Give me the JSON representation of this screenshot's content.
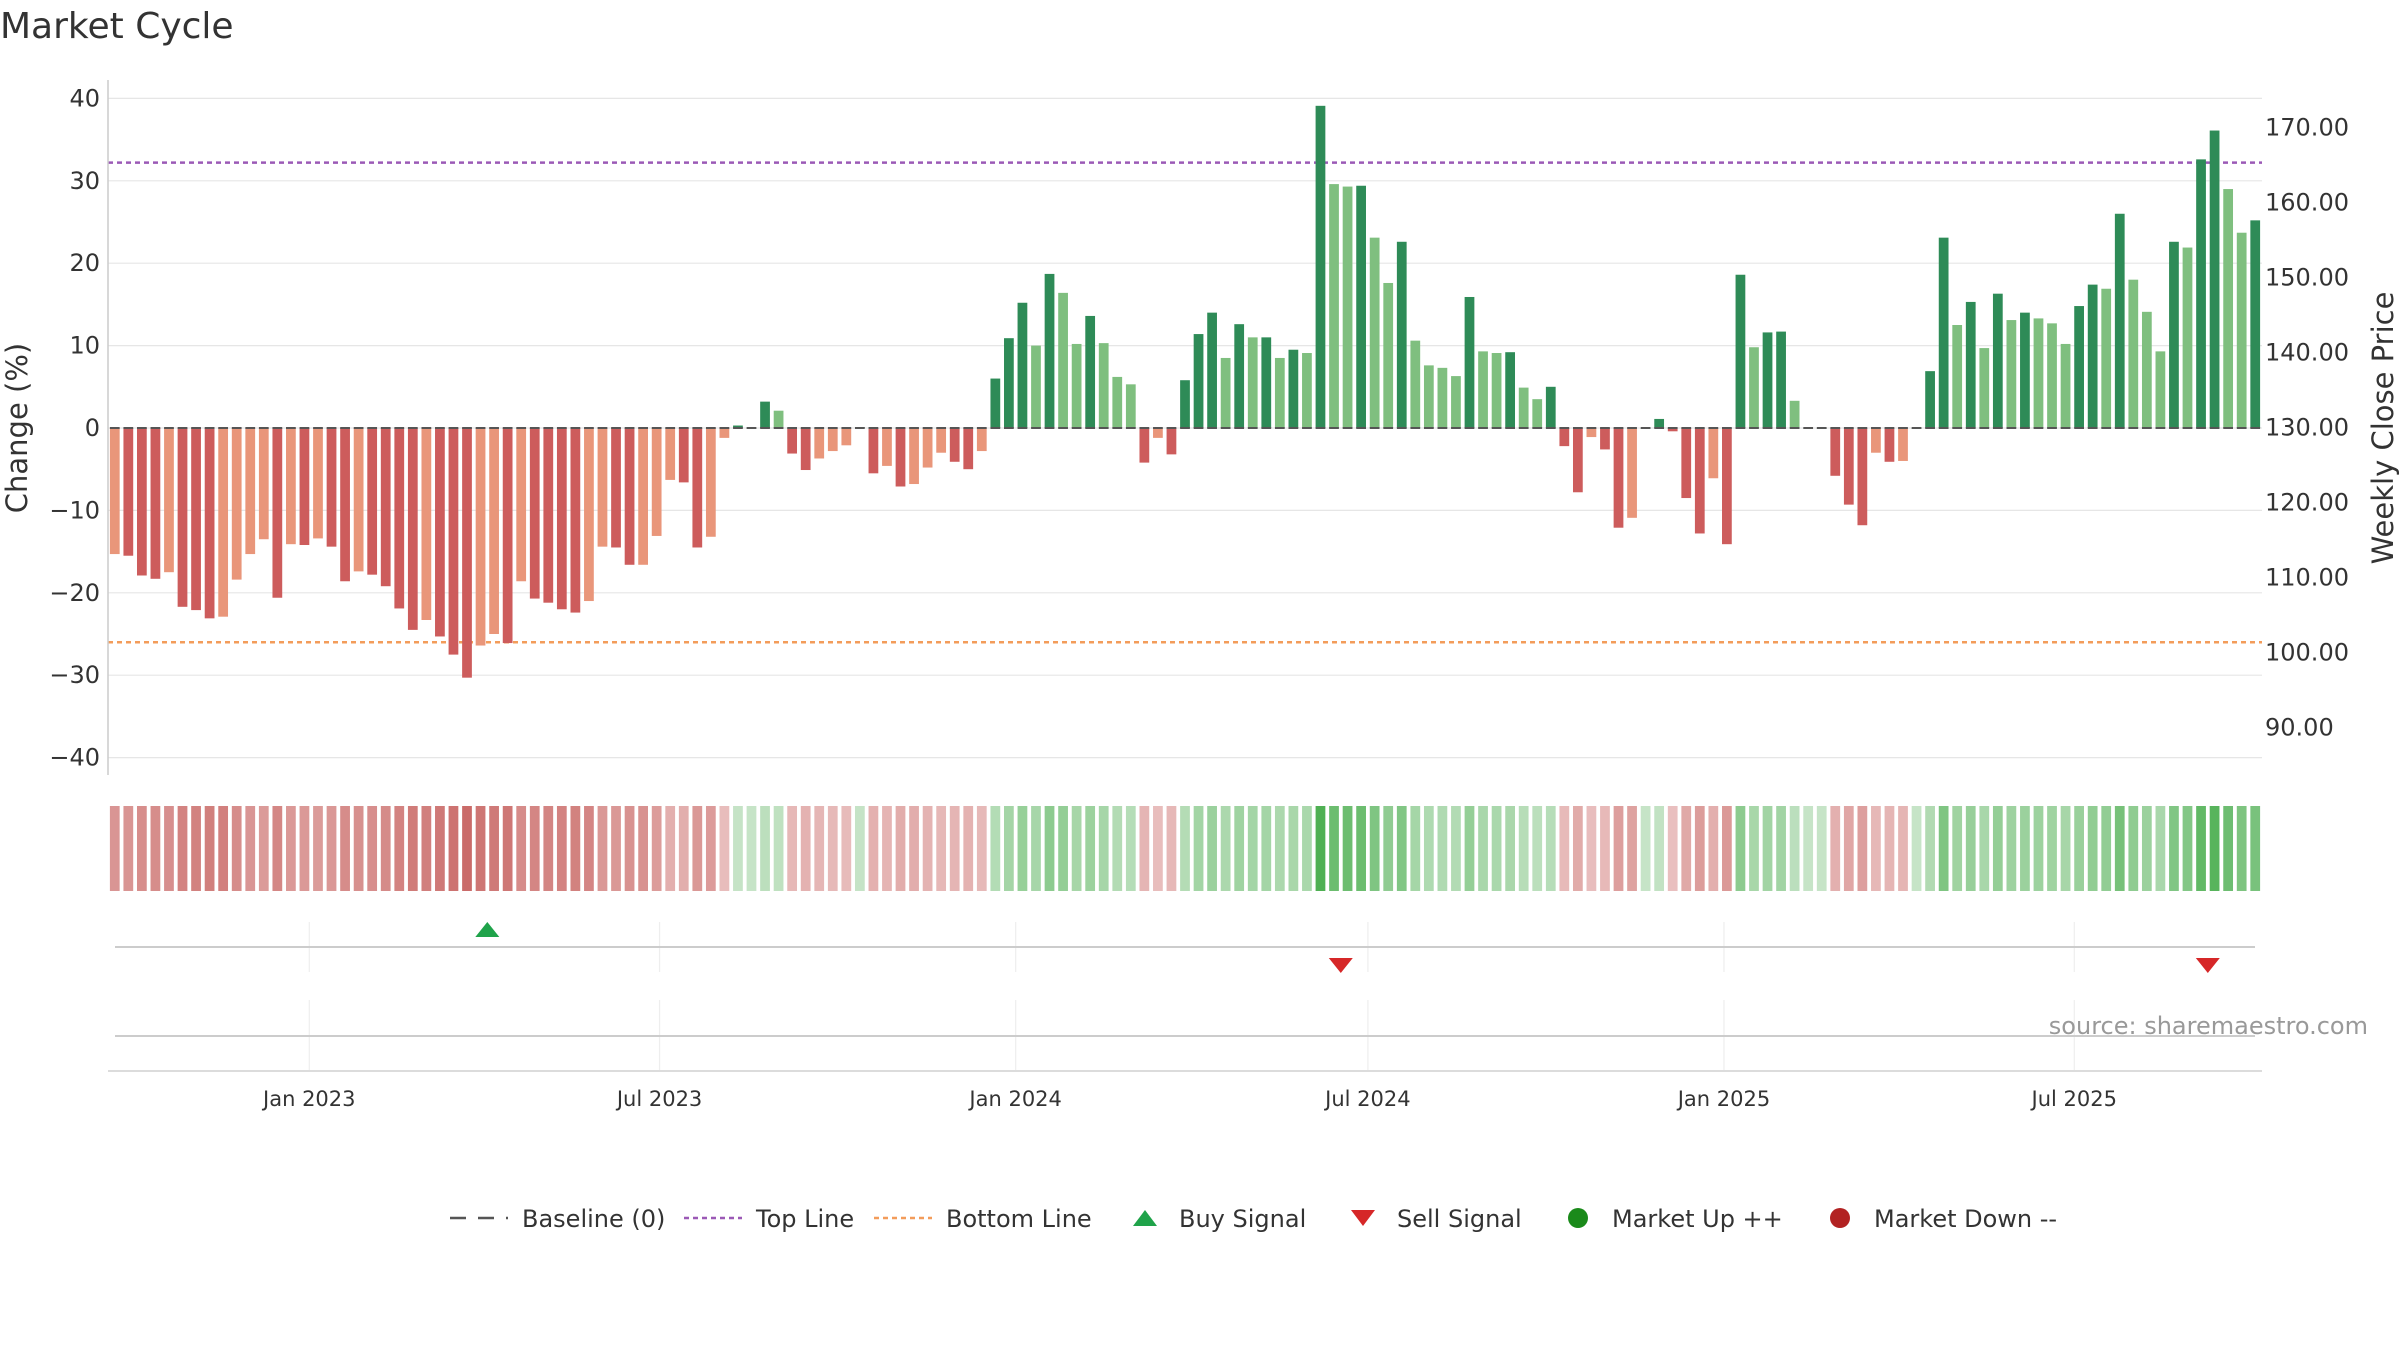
{
  "chart_data": {
    "type": "bar",
    "title": "Market Cycle",
    "ylabel": "Change (%)",
    "y2label": "Weekly Close Price",
    "ylim": [
      -42,
      42
    ],
    "y2lim": [
      83.7,
      176.3
    ],
    "yticks": [
      "40",
      "30",
      "20",
      "10",
      "0",
      "−10",
      "−20",
      "−30",
      "−40"
    ],
    "y2ticks": [
      "170.00",
      "160.00",
      "150.00",
      "140.00",
      "130.00",
      "120.00",
      "110.00",
      "100.00",
      "90.00"
    ],
    "x_range": [
      "2022-09-19",
      "2025-10-06"
    ],
    "xticks": [
      {
        "date": "2023-01-01",
        "label": "Jan 2023"
      },
      {
        "date": "2023-07-01",
        "label": "Jul 2023"
      },
      {
        "date": "2024-01-01",
        "label": "Jan 2024"
      },
      {
        "date": "2024-07-01",
        "label": "Jul 2024"
      },
      {
        "date": "2025-01-01",
        "label": "Jan 2025"
      },
      {
        "date": "2025-07-01",
        "label": "Jul 2025"
      }
    ],
    "start_week": "2022-09-19",
    "top_line": 32.2,
    "bottom_line": -26.0,
    "grid": true,
    "legend_position": "bottom",
    "values": [
      -15.3,
      -15.5,
      -17.9,
      -18.3,
      -17.5,
      -21.7,
      -22.1,
      -23.1,
      -22.9,
      -18.4,
      -15.3,
      -13.5,
      -20.6,
      -14.1,
      -14.2,
      -13.4,
      -14.4,
      -18.6,
      -17.4,
      -17.8,
      -19.2,
      -21.9,
      -24.5,
      -23.3,
      -25.3,
      -27.5,
      -30.3,
      -26.4,
      -25.0,
      -26.1,
      -18.6,
      -20.7,
      -21.2,
      -22.0,
      -22.4,
      -21.0,
      -14.4,
      -14.5,
      -16.6,
      -16.6,
      -13.1,
      -6.3,
      -6.6,
      -14.5,
      -13.2,
      -1.2,
      0.3,
      0.0,
      3.2,
      2.1,
      -3.1,
      -5.1,
      -3.7,
      -2.8,
      -2.1,
      0.1,
      -5.5,
      -4.6,
      -7.1,
      -6.8,
      -4.8,
      -3.0,
      -4.1,
      -5.0,
      -2.8,
      6.0,
      10.9,
      15.2,
      10.0,
      18.7,
      16.4,
      10.2,
      13.6,
      10.3,
      6.2,
      5.3,
      -4.2,
      -1.2,
      -3.2,
      5.8,
      11.4,
      14.0,
      8.5,
      12.6,
      11.0,
      11.0,
      8.5,
      9.5,
      9.1,
      39.1,
      29.6,
      29.3,
      29.4,
      23.1,
      17.6,
      22.6,
      10.6,
      7.6,
      7.3,
      6.3,
      15.9,
      9.3,
      9.1,
      9.2,
      4.9,
      3.5,
      5.0,
      -2.2,
      -7.8,
      -1.1,
      -2.6,
      -12.1,
      -10.9,
      0.0,
      1.1,
      -0.4,
      -8.5,
      -12.8,
      -6.1,
      -14.1,
      18.6,
      9.8,
      11.6,
      11.7,
      3.3,
      0.0,
      0.0,
      -5.8,
      -9.3,
      -11.8,
      -3.0,
      -4.1,
      -4.0,
      0.0,
      6.9,
      23.1,
      12.5,
      15.3,
      9.7,
      16.3,
      13.1,
      14.0,
      13.3,
      12.7,
      10.2,
      14.8,
      17.4,
      16.9,
      26.0,
      18.0,
      14.1,
      9.3,
      22.6,
      21.9,
      32.6,
      36.1,
      29.0,
      23.7,
      25.2
    ],
    "buy_signals": [
      "2023-04-03"
    ],
    "sell_signals": [
      "2024-06-17",
      "2025-09-08"
    ],
    "colors": {
      "up_strong": "#2e8b57",
      "up_weak": "#7fbf7f",
      "down_strong": "#cd5c5c",
      "down_weak": "#e9967a",
      "top_line": "#9b59b6",
      "bottom_line": "#f39c5a",
      "buy": "#1fa34a",
      "sell": "#d62728",
      "market_up": "#1a8a1a",
      "market_down": "#b22222",
      "baseline": "#555555"
    }
  },
  "legend": [
    {
      "label": "Baseline (0)",
      "marker": "dash-line",
      "color": "#555555"
    },
    {
      "label": "Top Line",
      "marker": "dotted-line",
      "color": "#9b59b6"
    },
    {
      "label": "Bottom Line",
      "marker": "dotted-line",
      "color": "#f39c5a"
    },
    {
      "label": "Buy Signal",
      "marker": "triangle-up",
      "color": "#1fa34a"
    },
    {
      "label": "Sell Signal",
      "marker": "triangle-down",
      "color": "#d62728"
    },
    {
      "label": "Market Up ++",
      "marker": "circle",
      "color": "#1a8a1a"
    },
    {
      "label": "Market Down --",
      "marker": "circle",
      "color": "#b22222"
    }
  ],
  "source_text": "source: sharemaestro.com"
}
